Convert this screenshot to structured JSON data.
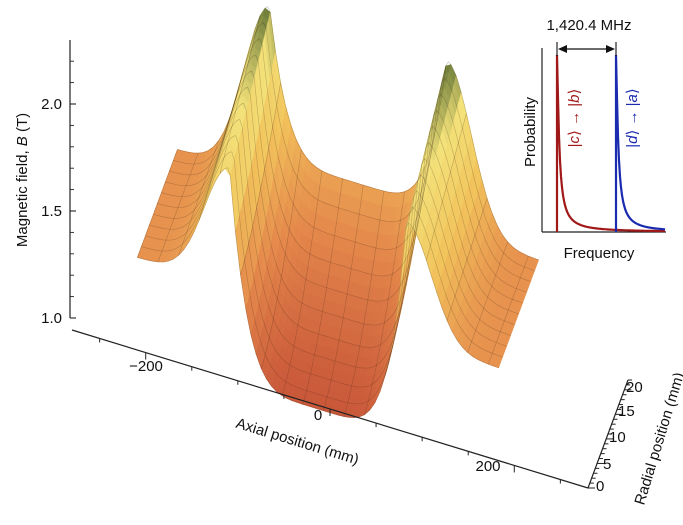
{
  "chart_data": [
    {
      "type": "surface",
      "xlabel": "Axial position (mm)",
      "ylabel": "Radial position (mm)",
      "zlabel_main": "Magnetic field, ",
      "zlabel_var": "B",
      "zlabel_unit": " (T)",
      "x_ticks": [
        "−200",
        "0",
        "200"
      ],
      "y_ticks": [
        "0",
        "5",
        "10",
        "15",
        "20"
      ],
      "z_ticks": [
        "1.0",
        "1.5",
        "2.0"
      ],
      "xlim": [
        -280,
        280
      ],
      "ylim": [
        0,
        22
      ],
      "zlim": [
        1.0,
        2.25
      ],
      "mirror_peaks": {
        "axial_positions": [
          -137,
          137
        ],
        "peak_field": [
          2.0,
          2.25
        ],
        "center_field": [
          1.0,
          1.55
        ],
        "outer_plateau_field": 1.45
      },
      "colormap": [
        "#c9583a",
        "#e58a4c",
        "#f2c45c",
        "#f3e27a",
        "#5d7032"
      ]
    },
    {
      "type": "line",
      "xlabel": "Frequency",
      "ylabel": "Probability",
      "annotation": "1,420.4 MHz",
      "series": [
        {
          "label_pre": "|",
          "label_state_from": "c",
          "label_arrow": "⟩ → |",
          "label_state_to": "b",
          "label_post": "⟩",
          "color": "#a01818"
        },
        {
          "label_pre": "|",
          "label_state_from": "d",
          "label_arrow": "⟩ → |",
          "label_state_to": "a",
          "label_post": "⟩",
          "color": "#1a2bb0"
        }
      ],
      "separation_MHz": 1420.4
    }
  ]
}
